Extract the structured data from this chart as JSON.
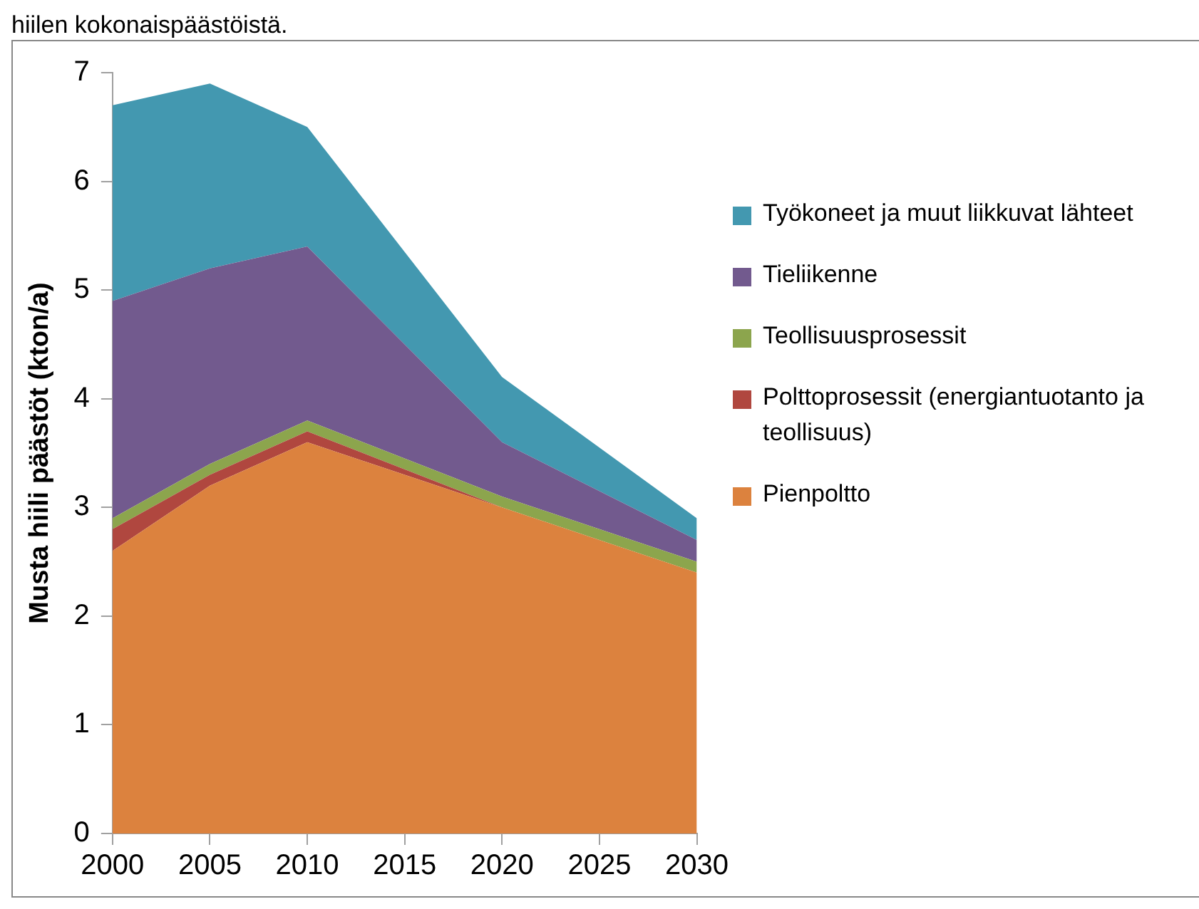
{
  "chart_data": {
    "type": "area",
    "stacked": true,
    "ylabel": "Musta hiili päästöt (kton/a)",
    "annotations": [
      "hiilen kokonaispäästöistä."
    ],
    "x": [
      2000,
      2005,
      2010,
      2020,
      2030
    ],
    "xlim": [
      2000,
      2030
    ],
    "xticks": [
      2000,
      2005,
      2010,
      2015,
      2020,
      2025,
      2030
    ],
    "ylim": [
      0,
      7
    ],
    "yticks": [
      0,
      1,
      2,
      3,
      4,
      5,
      6,
      7
    ],
    "grid": false,
    "legend": "right",
    "marker": "none",
    "series": [
      {
        "name": "Pienpoltto",
        "color": "#dc823e",
        "values": [
          2.6,
          3.2,
          3.6,
          3.0,
          2.4
        ]
      },
      {
        "name": "Polttoprosessit (energiantuotanto ja teollisuus)",
        "color": "#b0473f",
        "values": [
          0.2,
          0.1,
          0.1,
          0.0,
          0.0
        ]
      },
      {
        "name": "Teollisuusprosessit",
        "color": "#8ca54d",
        "values": [
          0.1,
          0.1,
          0.1,
          0.1,
          0.1
        ]
      },
      {
        "name": "Tieliikenne",
        "color": "#725a8e",
        "values": [
          2.0,
          1.8,
          1.6,
          0.5,
          0.2
        ]
      },
      {
        "name": "Työkoneet ja muut liikkuvat lähteet",
        "color": "#4398b0",
        "values": [
          1.8,
          1.7,
          1.1,
          0.6,
          0.2
        ]
      }
    ]
  }
}
